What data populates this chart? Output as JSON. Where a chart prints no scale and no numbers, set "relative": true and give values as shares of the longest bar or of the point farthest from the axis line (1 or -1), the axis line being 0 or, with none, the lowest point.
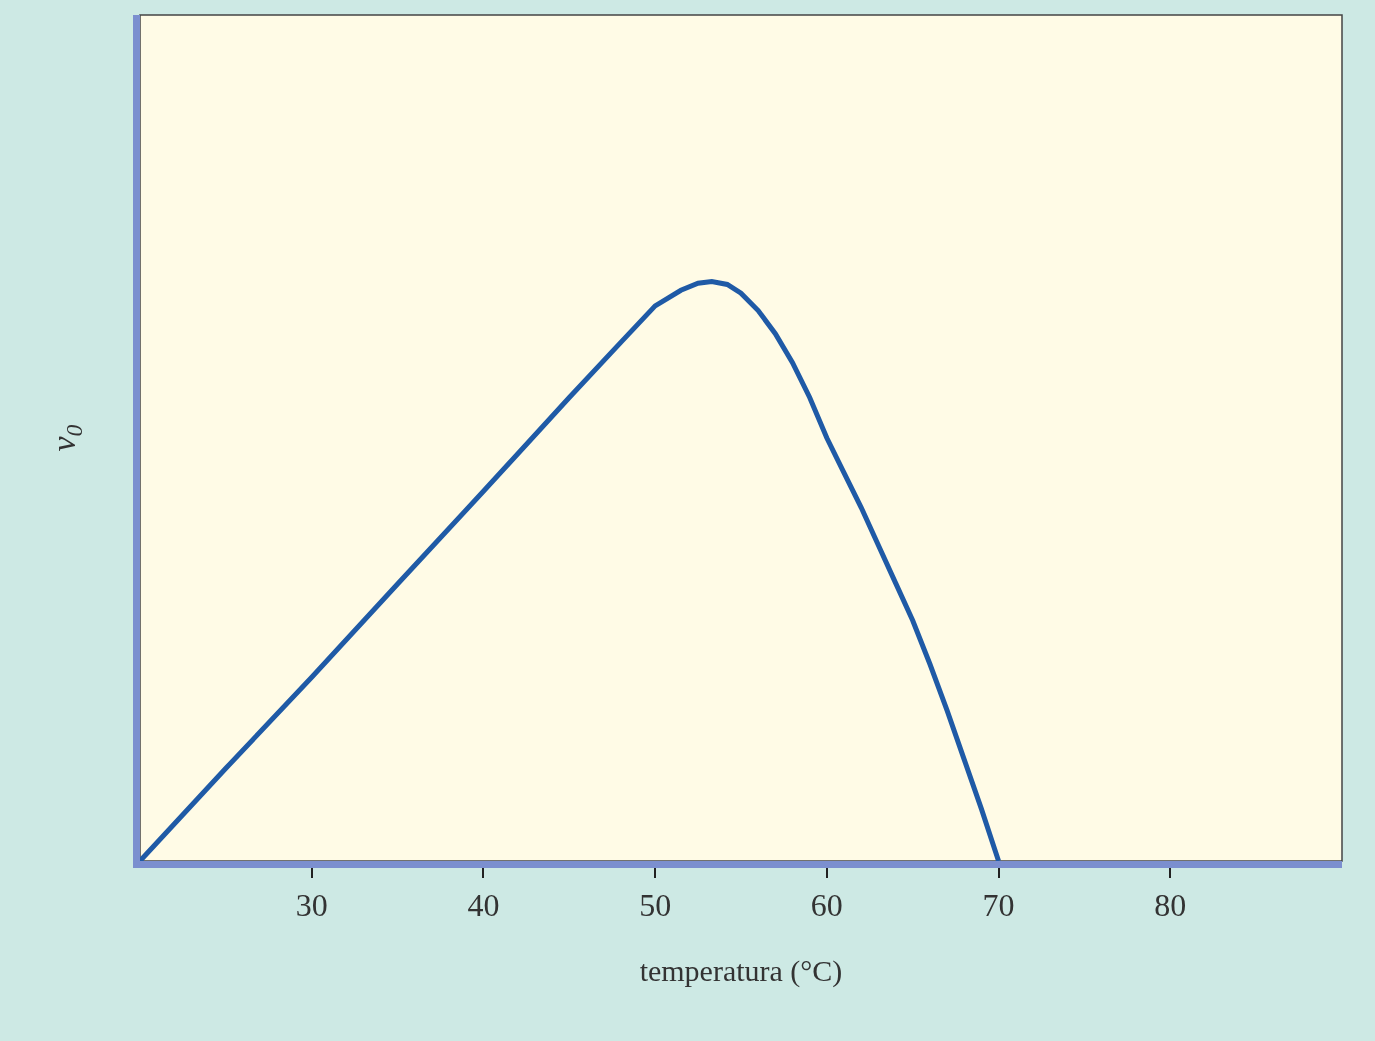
{
  "chart_data": {
    "type": "line",
    "xlabel": "temperatura (°C)",
    "ylabel": "v$_{0}$",
    "relative": true,
    "xlim": [
      20,
      90
    ],
    "xticks": [
      30,
      40,
      50,
      60,
      70,
      80
    ],
    "grid": false,
    "marker": "none",
    "line_style": "solid",
    "series": [
      {
        "color": "#1f5aa6",
        "x": [
          20,
          25,
          30,
          35,
          40,
          45,
          48,
          50,
          51.5,
          52.5,
          53.3,
          54.2,
          55,
          56,
          57,
          58,
          59,
          60,
          61,
          62,
          63,
          64,
          65,
          66,
          67,
          68,
          69,
          70
        ],
        "values": [
          0,
          0.16,
          0.317,
          0.478,
          0.638,
          0.8,
          0.895,
          0.958,
          0.985,
          0.997,
          1,
          0.995,
          0.98,
          0.95,
          0.91,
          0.86,
          0.8,
          0.73,
          0.67,
          0.61,
          0.545,
          0.48,
          0.415,
          0.34,
          0.26,
          0.175,
          0.09,
          0
        ]
      }
    ]
  }
}
